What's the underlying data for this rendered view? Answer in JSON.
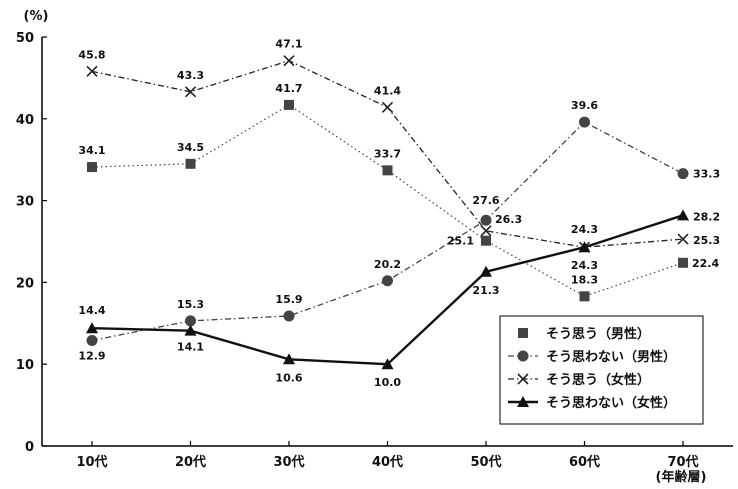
{
  "chart_data": {
    "type": "line",
    "y_unit_label": "(%)",
    "x_unit_label": "(年齢層)",
    "ylim": [
      0,
      50
    ],
    "yticks": [
      0,
      10,
      20,
      30,
      40,
      50
    ],
    "categories": [
      "10代",
      "20代",
      "30代",
      "40代",
      "50代",
      "60代",
      "70代"
    ],
    "grid": false,
    "legend_position": "bottom-right",
    "series": [
      {
        "name": "そう思う（男性）",
        "marker": "square",
        "line": "dotted",
        "color": "#444444",
        "values": [
          34.1,
          34.5,
          41.7,
          33.7,
          25.1,
          18.3,
          22.4
        ]
      },
      {
        "name": "そう思わない（男性）",
        "marker": "circle",
        "line": "dash-dot",
        "color": "#444444",
        "values": [
          12.9,
          15.3,
          15.9,
          20.2,
          27.6,
          39.6,
          33.3
        ]
      },
      {
        "name": "そう思う（女性）",
        "marker": "x",
        "line": "dash-dot",
        "color": "#222222",
        "values": [
          45.8,
          43.3,
          47.1,
          41.4,
          26.3,
          24.3,
          25.3
        ]
      },
      {
        "name": "そう思わない（女性）",
        "marker": "triangle",
        "line": "solid",
        "color": "#111111",
        "values": [
          14.4,
          14.1,
          10.6,
          10.0,
          21.3,
          24.3,
          28.2
        ]
      }
    ],
    "data_labels": [
      {
        "series": 0,
        "index": 0,
        "text": "34.1"
      },
      {
        "series": 0,
        "index": 1,
        "text": "34.5"
      },
      {
        "series": 0,
        "index": 2,
        "text": "41.7"
      },
      {
        "series": 0,
        "index": 3,
        "text": "33.7"
      },
      {
        "series": 0,
        "index": 4,
        "text": "25.1"
      },
      {
        "series": 0,
        "index": 5,
        "text": "18.3"
      },
      {
        "series": 0,
        "index": 6,
        "text": "22.4"
      },
      {
        "series": 1,
        "index": 0,
        "text": "12.9"
      },
      {
        "series": 1,
        "index": 1,
        "text": "15.3"
      },
      {
        "series": 1,
        "index": 2,
        "text": "15.9"
      },
      {
        "series": 1,
        "index": 3,
        "text": "20.2"
      },
      {
        "series": 1,
        "index": 4,
        "text": "27.6"
      },
      {
        "series": 1,
        "index": 5,
        "text": "39.6"
      },
      {
        "series": 1,
        "index": 6,
        "text": "33.3"
      },
      {
        "series": 2,
        "index": 0,
        "text": "45.8"
      },
      {
        "series": 2,
        "index": 1,
        "text": "43.3"
      },
      {
        "series": 2,
        "index": 2,
        "text": "47.1"
      },
      {
        "series": 2,
        "index": 3,
        "text": "41.4"
      },
      {
        "series": 2,
        "index": 4,
        "text": "26.3"
      },
      {
        "series": 2,
        "index": 5,
        "text": "24.3"
      },
      {
        "series": 2,
        "index": 6,
        "text": "25.3"
      },
      {
        "series": 3,
        "index": 0,
        "text": "14.4"
      },
      {
        "series": 3,
        "index": 1,
        "text": "14.1"
      },
      {
        "series": 3,
        "index": 2,
        "text": "10.6"
      },
      {
        "series": 3,
        "index": 3,
        "text": "10.0"
      },
      {
        "series": 3,
        "index": 4,
        "text": "21.3"
      },
      {
        "series": 3,
        "index": 5,
        "text": "24.3"
      },
      {
        "series": 3,
        "index": 6,
        "text": "28.2"
      }
    ]
  }
}
